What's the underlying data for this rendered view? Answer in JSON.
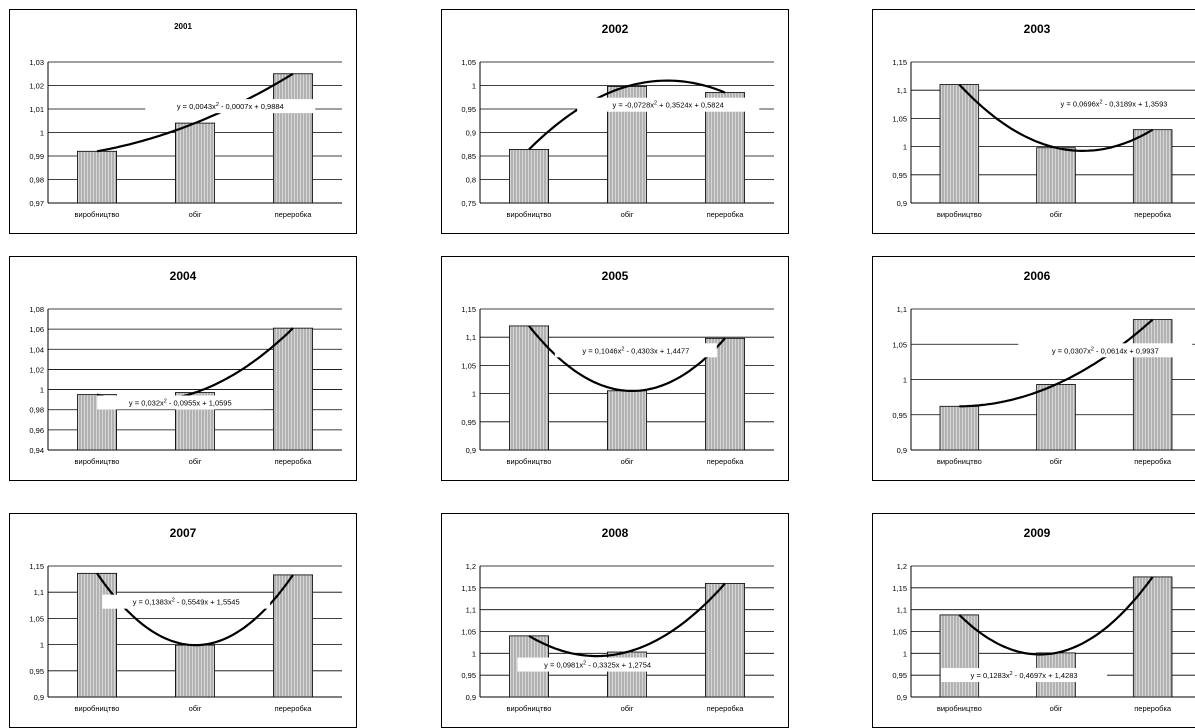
{
  "chart_data": [
    {
      "type": "bar",
      "title": "2001",
      "categories": [
        "виробництво",
        "обіг",
        "переробка"
      ],
      "values": [
        0.992,
        1.004,
        1.025
      ],
      "ylim": [
        0.97,
        1.03
      ],
      "yticks": [
        "0,97",
        "0,98",
        "0,99",
        "1",
        "1,01",
        "1,02",
        "1,03"
      ],
      "trendline": {
        "type": "polynomial",
        "label": "y = 0,0043x2 - 0,0007x + 0,9884"
      },
      "bar_color": "#b8b8b8",
      "grid": true,
      "legend": "none"
    },
    {
      "type": "bar",
      "title": "2002",
      "categories": [
        "виробництво",
        "обіг",
        "переробка"
      ],
      "values": [
        0.864,
        0.998,
        0.985
      ],
      "ylim": [
        0.75,
        1.05
      ],
      "yticks": [
        "0,75",
        "0,8",
        "0,85",
        "0,9",
        "0,95",
        "1",
        "1,05"
      ],
      "trendline": {
        "type": "polynomial",
        "label": "y = -0,0728x2 + 0,3524x + 0,5824"
      },
      "bar_color": "#b8b8b8",
      "grid": true,
      "legend": "none"
    },
    {
      "type": "bar",
      "title": "2003",
      "categories": [
        "виробництво",
        "обіг",
        "переробка"
      ],
      "values": [
        1.11,
        0.998,
        1.03
      ],
      "ylim": [
        0.9,
        1.15
      ],
      "yticks": [
        "0,9",
        "0,95",
        "1",
        "1,05",
        "1,1",
        "1,15"
      ],
      "trendline": {
        "type": "polynomial",
        "label": "y = 0,0696x2 - 0,3189x + 1,3593"
      },
      "bar_color": "#b8b8b8",
      "grid": true,
      "legend": "none"
    },
    {
      "type": "bar",
      "title": "2004",
      "categories": [
        "виробництво",
        "обіг",
        "переробка"
      ],
      "values": [
        0.995,
        0.997,
        1.061
      ],
      "ylim": [
        0.94,
        1.08
      ],
      "yticks": [
        "0,94",
        "0,96",
        "0,98",
        "1",
        "1,02",
        "1,04",
        "1,06",
        "1,08"
      ],
      "trendline": {
        "type": "polynomial",
        "label": "y = 0,032x2 - 0,0955x + 1,0595"
      },
      "bar_color": "#b8b8b8",
      "grid": true,
      "legend": "none"
    },
    {
      "type": "bar",
      "title": "2005",
      "categories": [
        "виробництво",
        "обіг",
        "переробка"
      ],
      "values": [
        1.12,
        1.005,
        1.098
      ],
      "ylim": [
        0.9,
        1.15
      ],
      "yticks": [
        "0,9",
        "0,95",
        "1",
        "1,05",
        "1,1",
        "1,15"
      ],
      "trendline": {
        "type": "polynomial",
        "label": "y = 0,1046x2 - 0,4303x + 1,4477"
      },
      "bar_color": "#b8b8b8",
      "grid": true,
      "legend": "none"
    },
    {
      "type": "bar",
      "title": "2006",
      "categories": [
        "виробництво",
        "обіг",
        "переробка"
      ],
      "values": [
        0.962,
        0.993,
        1.085
      ],
      "ylim": [
        0.9,
        1.1
      ],
      "yticks": [
        "0,9",
        "0,95",
        "1",
        "1,05",
        "1,1"
      ],
      "trendline": {
        "type": "polynomial",
        "label": "y = 0,0307x2 - 0,0614x + 0,9937"
      },
      "bar_color": "#b8b8b8",
      "grid": true,
      "legend": "none"
    },
    {
      "type": "bar",
      "title": "2007",
      "categories": [
        "виробництво",
        "обіг",
        "переробка"
      ],
      "values": [
        1.136,
        0.999,
        1.133
      ],
      "ylim": [
        0.9,
        1.15
      ],
      "yticks": [
        "0,9",
        "0,95",
        "1",
        "1,05",
        "1,1",
        "1,15"
      ],
      "trendline": {
        "type": "polynomial",
        "label": "y = 0,1383x2 - 0,5549x + 1,5545"
      },
      "bar_color": "#b8b8b8",
      "grid": true,
      "legend": "none"
    },
    {
      "type": "bar",
      "title": "2008",
      "categories": [
        "виробництво",
        "обіг",
        "переробка"
      ],
      "values": [
        1.04,
        1.003,
        1.16
      ],
      "ylim": [
        0.9,
        1.2
      ],
      "yticks": [
        "0,9",
        "0,95",
        "1",
        "1,05",
        "1,1",
        "1,15",
        "1,2"
      ],
      "trendline": {
        "type": "polynomial",
        "label": "y = 0,0981x2 - 0,3325x + 1,2754"
      },
      "bar_color": "#b8b8b8",
      "grid": true,
      "legend": "none"
    },
    {
      "type": "bar",
      "title": "2009",
      "categories": [
        "виробництво",
        "обіг",
        "переробка"
      ],
      "values": [
        1.088,
        1.001,
        1.175
      ],
      "ylim": [
        0.9,
        1.2
      ],
      "yticks": [
        "0,9",
        "0,95",
        "1",
        "1,05",
        "1,1",
        "1,15",
        "1,2"
      ],
      "trendline": {
        "type": "polynomial",
        "label": "y = 0,1283x2 - 0,4697x + 1,4283"
      },
      "bar_color": "#b8b8b8",
      "grid": true,
      "legend": "none"
    }
  ]
}
